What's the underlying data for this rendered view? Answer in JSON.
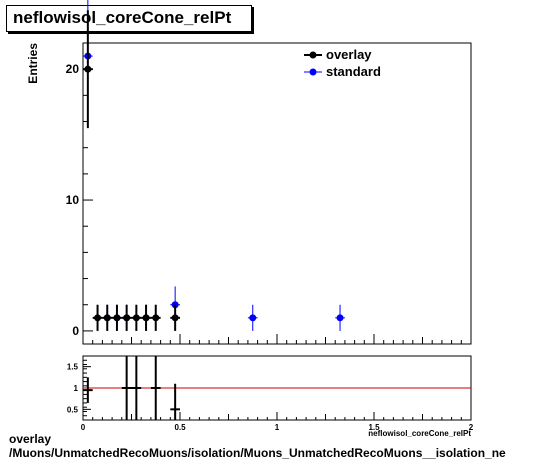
{
  "title": "neflowisol_coreCone_relPt",
  "footer": {
    "line1": "overlay",
    "line2": "/Muons/UnmatchedRecoMuons/isolation/Muons_UnmatchedRecoMuons__isolation_ne"
  },
  "chart_data": [
    {
      "type": "scatter",
      "ylabel": "Entries",
      "xlim": [
        0,
        2
      ],
      "ylim": [
        -1,
        22
      ],
      "yticks": [
        "0",
        "10",
        "20"
      ],
      "legend": {
        "placement": "top-right",
        "entries": [
          "overlay",
          "standard"
        ]
      },
      "colors": {
        "overlay": "#000000",
        "standard": "#0000ff"
      },
      "series": [
        {
          "name": "overlay",
          "x": [
            0.025,
            0.075,
            0.125,
            0.175,
            0.225,
            0.275,
            0.325,
            0.375,
            0.475
          ],
          "y": [
            20,
            1,
            1,
            1,
            1,
            1,
            1,
            1,
            1
          ],
          "yerr": [
            4.5,
            1,
            1,
            1,
            1,
            1,
            1,
            1,
            1
          ]
        },
        {
          "name": "standard",
          "x": [
            0.025,
            0.125,
            0.175,
            0.225,
            0.325,
            0.475,
            0.875,
            1.325
          ],
          "y": [
            21,
            1,
            1,
            1,
            1,
            2,
            1,
            1
          ],
          "yerr": [
            4.6,
            1,
            1,
            1,
            1,
            1.4,
            1,
            1
          ]
        }
      ]
    },
    {
      "type": "scatter",
      "xlabel": "neflowisol_coreCone_relPt",
      "xlim": [
        0,
        2
      ],
      "ylim": [
        0.25,
        1.75
      ],
      "yticks": [
        "0.5",
        "1",
        "1.5"
      ],
      "xticks": [
        "0",
        "0.5",
        "1",
        "1.5",
        "2"
      ],
      "reference_line": 1,
      "colors": {
        "points": "#000000",
        "reference": "#cc0000"
      },
      "points": {
        "x": [
          0.025,
          0.225,
          0.275,
          0.375,
          0.475
        ],
        "y": [
          0.95,
          1.0,
          1.0,
          1.0,
          0.5
        ],
        "yerr": [
          0.3,
          1.4,
          1.4,
          1.4,
          0.6
        ]
      }
    }
  ]
}
